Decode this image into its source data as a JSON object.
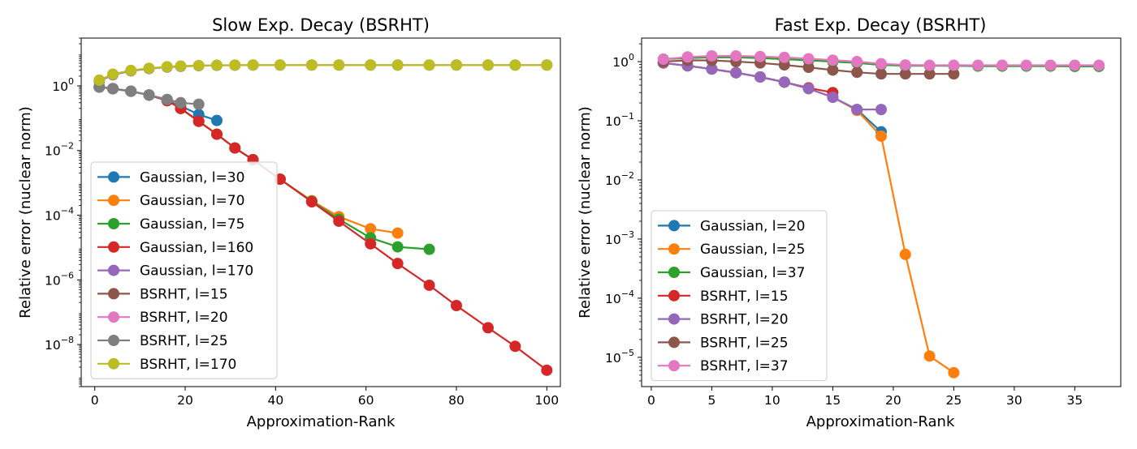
{
  "chart_data": [
    {
      "type": "line",
      "title": "Slow Exp. Decay (BSRHT)",
      "xlabel": "Approximation-Rank",
      "ylabel": "Relative error (nuclear norm)",
      "yscale": "log",
      "xlim": [
        -3,
        103
      ],
      "ylim": [
        5e-10,
        30
      ],
      "xticks": [
        0,
        20,
        40,
        60,
        80,
        100
      ],
      "xtick_labels": [
        "0",
        "20",
        "40",
        "60",
        "80",
        "100"
      ],
      "yticks": [
        1e-08,
        1e-06,
        0.0001,
        0.01,
        1
      ],
      "ytick_labels": [
        {
          "base": "10",
          "exp": "−8"
        },
        {
          "base": "10",
          "exp": "−6"
        },
        {
          "base": "10",
          "exp": "−4"
        },
        {
          "base": "10",
          "exp": "−2"
        },
        {
          "base": "10",
          "exp": "0"
        }
      ],
      "legend_position": "lower-left",
      "series": [
        {
          "name": "Gaussian, l=30",
          "color": "#1f77b4",
          "x": [
            1,
            4,
            8,
            12,
            16,
            19,
            23,
            27
          ],
          "y": [
            0.92,
            0.82,
            0.68,
            0.52,
            0.35,
            0.24,
            0.13,
            0.085
          ]
        },
        {
          "name": "Gaussian, l=70",
          "color": "#ff7f0e",
          "x": [
            1,
            4,
            8,
            12,
            16,
            19,
            23,
            27,
            31,
            35,
            41,
            48,
            54,
            61,
            67
          ],
          "y": [
            0.92,
            0.82,
            0.68,
            0.52,
            0.35,
            0.2,
            0.08,
            0.032,
            0.012,
            0.0052,
            0.0013,
            0.00028,
            9e-05,
            3.8e-05,
            2.8e-05
          ]
        },
        {
          "name": "Gaussian, l=75",
          "color": "#2ca02c",
          "x": [
            1,
            4,
            8,
            12,
            16,
            19,
            23,
            27,
            31,
            35,
            41,
            48,
            54,
            61,
            67,
            74
          ],
          "y": [
            0.92,
            0.82,
            0.68,
            0.52,
            0.35,
            0.2,
            0.08,
            0.032,
            0.012,
            0.0052,
            0.0013,
            0.00027,
            7.5e-05,
            2e-05,
            1.05e-05,
            8.8e-06
          ]
        },
        {
          "name": "Gaussian, l=160",
          "color": "#d62728",
          "x": [
            1,
            4,
            8,
            12,
            16,
            19,
            23,
            27,
            31,
            35,
            41,
            48,
            54,
            61,
            67,
            74,
            80,
            87,
            93,
            100
          ],
          "y": [
            0.92,
            0.82,
            0.68,
            0.52,
            0.35,
            0.2,
            0.08,
            0.032,
            0.012,
            0.0052,
            0.0013,
            0.00026,
            6.5e-05,
            1.3e-05,
            3.2e-06,
            6.8e-07,
            1.6e-07,
            3.3e-08,
            8.8e-09,
            1.6e-09
          ]
        },
        {
          "name": "Gaussian, l=170",
          "color": "#9467bd",
          "x": [
            1,
            4,
            8,
            12,
            16,
            19,
            23,
            27,
            31,
            35,
            41,
            48,
            54,
            61,
            67,
            74,
            80,
            87,
            93,
            100
          ],
          "y": [
            1.4,
            2.2,
            2.9,
            3.4,
            3.8,
            4.0,
            4.2,
            4.3,
            4.35,
            4.4,
            4.4,
            4.4,
            4.4,
            4.4,
            4.4,
            4.4,
            4.4,
            4.4,
            4.4,
            4.4
          ]
        },
        {
          "name": "BSRHT, l=15",
          "color": "#8c564b",
          "x": [
            1,
            4,
            8,
            12
          ],
          "y": [
            0.92,
            0.82,
            0.68,
            0.52
          ]
        },
        {
          "name": "BSRHT, l=20",
          "color": "#e377c2",
          "x": [
            1,
            4,
            8,
            12,
            16,
            19
          ],
          "y": [
            0.92,
            0.82,
            0.68,
            0.52,
            0.38,
            0.3
          ]
        },
        {
          "name": "BSRHT, l=25",
          "color": "#7f7f7f",
          "x": [
            1,
            4,
            8,
            12,
            16,
            19,
            23
          ],
          "y": [
            0.92,
            0.82,
            0.68,
            0.52,
            0.38,
            0.3,
            0.27
          ]
        },
        {
          "name": "BSRHT, l=170",
          "color": "#bcbd22",
          "x": [
            1,
            4,
            8,
            12,
            16,
            19,
            23,
            27,
            31,
            35,
            41,
            48,
            54,
            61,
            67,
            74,
            80,
            87,
            93,
            100
          ],
          "y": [
            1.5,
            2.3,
            3.0,
            3.5,
            3.9,
            4.1,
            4.25,
            4.35,
            4.4,
            4.4,
            4.4,
            4.4,
            4.4,
            4.4,
            4.4,
            4.4,
            4.4,
            4.4,
            4.4,
            4.4
          ]
        }
      ]
    },
    {
      "type": "line",
      "title": "Fast Exp. Decay (BSRHT)",
      "xlabel": "Approximation-Rank",
      "ylabel": "Relative error (nuclear norm)",
      "yscale": "log",
      "xlim": [
        -0.8,
        38.8
      ],
      "ylim": [
        3.2e-06,
        2.5
      ],
      "xticks": [
        0,
        5,
        10,
        15,
        20,
        25,
        30,
        35
      ],
      "xtick_labels": [
        "0",
        "5",
        "10",
        "15",
        "20",
        "25",
        "30",
        "35"
      ],
      "yticks": [
        1e-05,
        0.0001,
        0.001,
        0.01,
        0.1,
        1
      ],
      "ytick_labels": [
        {
          "base": "10",
          "exp": "−5"
        },
        {
          "base": "10",
          "exp": "−4"
        },
        {
          "base": "10",
          "exp": "−3"
        },
        {
          "base": "10",
          "exp": "−2"
        },
        {
          "base": "10",
          "exp": "−1"
        },
        {
          "base": "10",
          "exp": "0"
        }
      ],
      "legend_position": "lower-left",
      "series": [
        {
          "name": "Gaussian, l=20",
          "color": "#1f77b4",
          "x": [
            1,
            3,
            5,
            7,
            9,
            11,
            13,
            15,
            17,
            19
          ],
          "y": [
            0.95,
            0.85,
            0.75,
            0.65,
            0.55,
            0.45,
            0.35,
            0.25,
            0.155,
            0.065
          ]
        },
        {
          "name": "Gaussian, l=25",
          "color": "#ff7f0e",
          "x": [
            1,
            3,
            5,
            7,
            9,
            11,
            13,
            15,
            17,
            19,
            21,
            23,
            25
          ],
          "y": [
            0.95,
            0.85,
            0.75,
            0.65,
            0.55,
            0.45,
            0.35,
            0.25,
            0.15,
            0.055,
            0.00055,
            1.05e-05,
            5.5e-06
          ]
        },
        {
          "name": "Gaussian, l=37",
          "color": "#2ca02c",
          "x": [
            1,
            3,
            5,
            7,
            9,
            11,
            13,
            15,
            17,
            19,
            21,
            23,
            25,
            27,
            29,
            31,
            33,
            35,
            37
          ],
          "y": [
            1.1,
            1.15,
            1.18,
            1.18,
            1.15,
            1.1,
            1.05,
            1.0,
            0.95,
            0.88,
            0.85,
            0.85,
            0.85,
            0.84,
            0.84,
            0.84,
            0.84,
            0.83,
            0.83
          ]
        },
        {
          "name": "BSRHT, l=15",
          "color": "#d62728",
          "x": [
            1,
            3,
            5,
            7,
            9,
            11,
            13,
            15
          ],
          "y": [
            0.95,
            0.85,
            0.75,
            0.65,
            0.55,
            0.45,
            0.36,
            0.3
          ]
        },
        {
          "name": "BSRHT, l=20",
          "color": "#9467bd",
          "x": [
            1,
            3,
            5,
            7,
            9,
            11,
            13,
            15,
            17,
            19
          ],
          "y": [
            0.95,
            0.85,
            0.75,
            0.65,
            0.55,
            0.45,
            0.35,
            0.25,
            0.155,
            0.155
          ]
        },
        {
          "name": "BSRHT, l=25",
          "color": "#8c564b",
          "x": [
            1,
            3,
            5,
            7,
            9,
            11,
            13,
            15,
            17,
            19,
            21,
            23,
            25
          ],
          "y": [
            1.0,
            1.05,
            1.05,
            1.0,
            0.95,
            0.88,
            0.8,
            0.72,
            0.66,
            0.62,
            0.62,
            0.62,
            0.62
          ]
        },
        {
          "name": "BSRHT, l=37",
          "color": "#e377c2",
          "x": [
            1,
            3,
            5,
            7,
            9,
            11,
            13,
            15,
            17,
            19,
            21,
            23,
            25,
            27,
            29,
            31,
            33,
            35,
            37
          ],
          "y": [
            1.1,
            1.2,
            1.25,
            1.25,
            1.22,
            1.18,
            1.12,
            1.06,
            1.0,
            0.92,
            0.88,
            0.87,
            0.87,
            0.87,
            0.87,
            0.87,
            0.87,
            0.87,
            0.87
          ]
        }
      ]
    }
  ]
}
